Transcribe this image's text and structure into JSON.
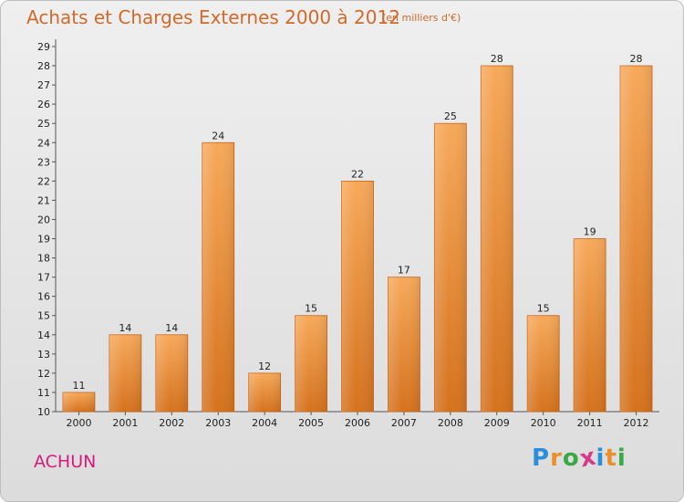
{
  "title": "Achats et Charges Externes 2000 à 2012",
  "subtitle": "(en milliers d'€)",
  "commune": "ACHUN",
  "logo": {
    "letters": [
      "P",
      "r",
      "o",
      "x",
      "i",
      "t",
      "i"
    ],
    "colors": [
      "#2a8fd8",
      "#e8912a",
      "#3aa845",
      "#d83a8a",
      "#2a8fd8",
      "#e8912a",
      "#3aa845"
    ]
  },
  "colors": {
    "bar_top": "#f7a95a",
    "bar_bottom": "#d5721d",
    "title": "#d06a2a",
    "commune": "#d81b7a"
  },
  "chart_data": {
    "type": "bar",
    "title": "Achats et Charges Externes 2000 à 2012",
    "subtitle": "(en milliers d'€)",
    "categories": [
      "2000",
      "2001",
      "2002",
      "2003",
      "2004",
      "2005",
      "2006",
      "2007",
      "2008",
      "2009",
      "2010",
      "2011",
      "2012"
    ],
    "values": [
      11,
      14,
      14,
      24,
      12,
      15,
      22,
      17,
      25,
      28,
      15,
      19,
      28
    ],
    "xlabel": "",
    "ylabel": "",
    "ylim": [
      10,
      29
    ],
    "yticks": [
      10,
      11,
      12,
      13,
      14,
      15,
      16,
      17,
      18,
      19,
      20,
      21,
      22,
      23,
      24,
      25,
      26,
      27,
      28,
      29
    ],
    "grid": false,
    "legend": "none"
  }
}
